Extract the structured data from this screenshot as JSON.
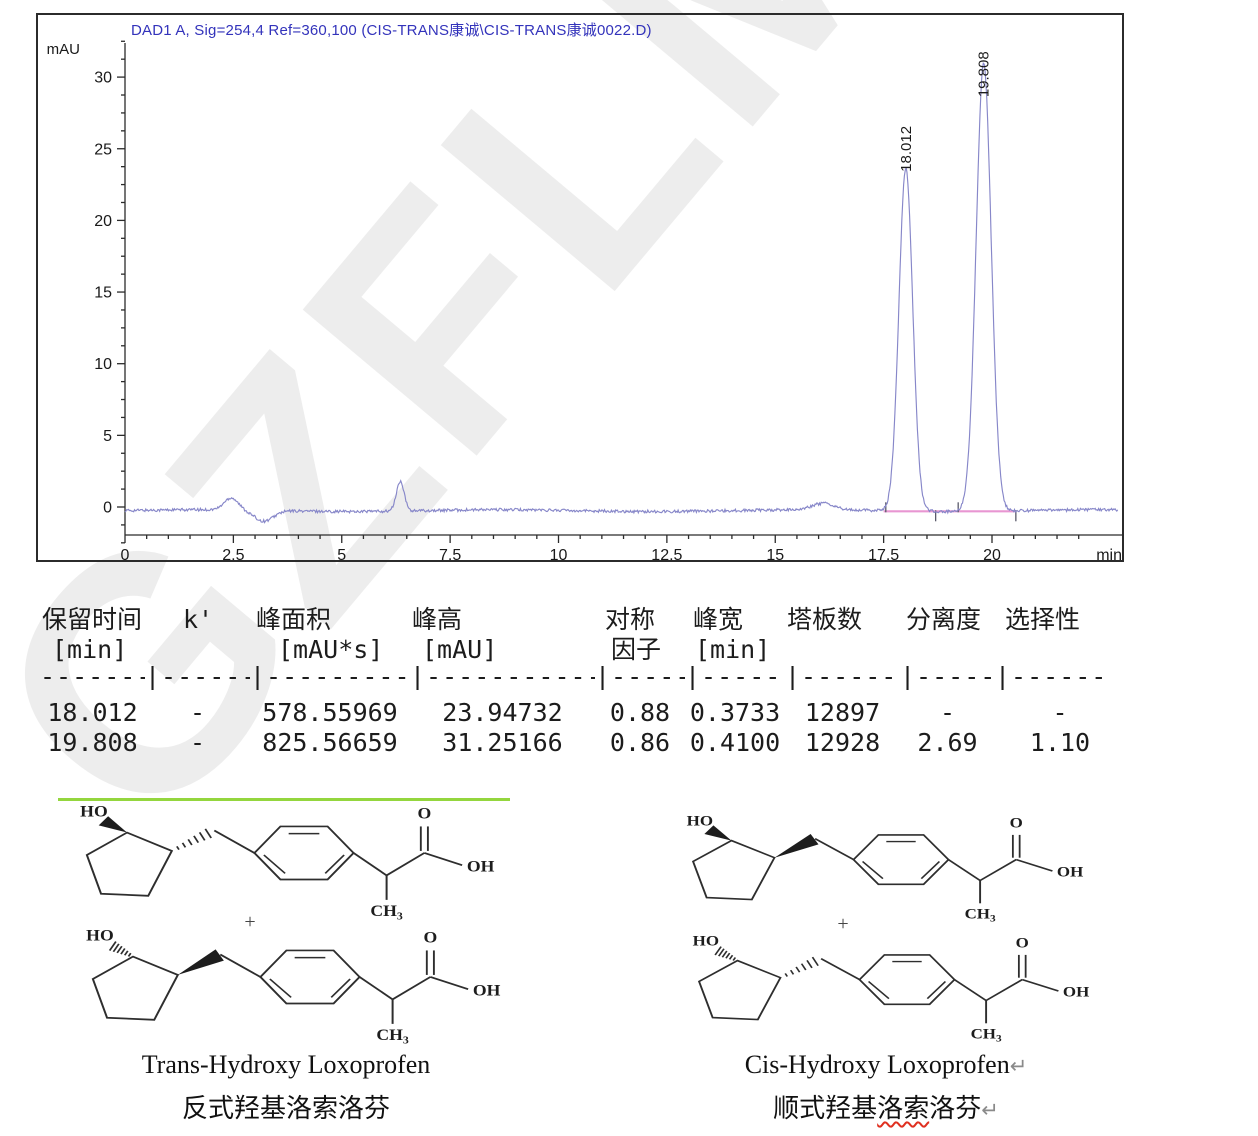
{
  "watermark": {
    "text": "GZFLM"
  },
  "chart_data": {
    "type": "line",
    "title": "DAD1 A, Sig=254,4 Ref=360,100 (CIS-TRANS康诚\\CIS-TRANS康诚0022.D)",
    "ylabel": "mAU",
    "xlabel": "min",
    "x_ticks": [
      0,
      2.5,
      5,
      7.5,
      10,
      12.5,
      15,
      17.5,
      20
    ],
    "y_ticks": [
      0,
      5,
      10,
      15,
      20,
      25,
      30
    ],
    "xlim": [
      0,
      22.9
    ],
    "ylim": [
      -3.6,
      34.5
    ],
    "grid": false,
    "line_color": "#8787c9",
    "baseline_mau": -0.25,
    "noise_mau": 0.1,
    "peaks": [
      {
        "rt": 18.012,
        "height_mau": 23.94732,
        "width_min": 0.3733,
        "label": "18.012"
      },
      {
        "rt": 19.808,
        "height_mau": 31.25166,
        "width_min": 0.41,
        "label": "19.808"
      }
    ],
    "minor_features": [
      {
        "rt": 2.45,
        "height_mau": 0.85,
        "sigma": 0.16
      },
      {
        "rt": 3.2,
        "height_mau": -0.75,
        "sigma": 0.22
      },
      {
        "rt": 6.35,
        "height_mau": 2.05,
        "sigma": 0.09
      },
      {
        "rt": 16.1,
        "height_mau": 0.45,
        "sigma": 0.25
      }
    ],
    "integration": {
      "color": "#e märk896d2",
      "start_min": 17.5,
      "end_min": 20.55,
      "level_mau": -0.3,
      "tick_marks": [
        {
          "min": 17.55,
          "dir": "up"
        },
        {
          "min": 18.7,
          "dir": "down"
        },
        {
          "min": 19.22,
          "dir": "up"
        },
        {
          "min": 20.55,
          "dir": "down"
        }
      ]
    }
  },
  "peak_table": {
    "columns": [
      {
        "title": "保留时间",
        "sub": "[min]",
        "dash": "-------"
      },
      {
        "title": "k'",
        "sub": "",
        "dash": "|------"
      },
      {
        "title": "峰面积",
        "sub": "[mAU*s]",
        "dash": "|-----------"
      },
      {
        "title": "峰高",
        "sub": "[mAU]",
        "dash": "|-----------"
      },
      {
        "title": "对称",
        "sub": "因子",
        "dash": "|-----"
      },
      {
        "title": "峰宽",
        "sub": "[min]",
        "dash": "|-------"
      },
      {
        "title": "塔板数",
        "sub": "",
        "dash": "|-------"
      },
      {
        "title": "分离度",
        "sub": "",
        "dash": "|-----"
      },
      {
        "title": "选择性",
        "sub": "",
        "dash": "|------"
      }
    ],
    "rows": [
      [
        "18.012",
        "-",
        "578.55969",
        "23.94732",
        "0.88",
        "0.3733",
        "12897",
        "-",
        "-"
      ],
      [
        "19.808",
        "-",
        "825.56659",
        "31.25166",
        "0.86",
        "0.4100",
        "12928",
        "2.69",
        "1.10"
      ]
    ]
  },
  "structures": {
    "plus_sign": "+",
    "atom_labels": {
      "ho": "HO",
      "o": "O",
      "oh": "OH",
      "ch": "CH",
      "ch3_sub": "3"
    },
    "left": {
      "caption_en": "Trans-Hydroxy Loxoprofen",
      "caption_zh": "反式羟基洛索洛芬",
      "molecules": [
        {
          "oh": "wedge",
          "chain": "hash"
        },
        {
          "oh": "hash",
          "chain": "wedge"
        }
      ]
    },
    "right": {
      "caption_en": "Cis-Hydroxy Loxoprofen",
      "caption_zh_pre": "顺式羟基",
      "caption_zh_marked": "洛索",
      "caption_zh_post": "洛芬",
      "paragraph_mark": "↵",
      "molecules": [
        {
          "oh": "wedge",
          "chain": "wedge"
        },
        {
          "oh": "hash",
          "chain": "hash"
        }
      ]
    }
  }
}
